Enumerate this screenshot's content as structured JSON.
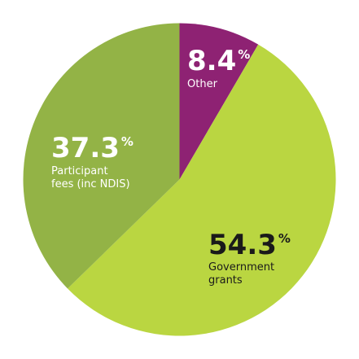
{
  "chart_data": {
    "type": "pie",
    "start_angle_deg": 0,
    "direction": "clockwise",
    "slices": [
      {
        "key": "other",
        "value": 8.4,
        "value_label": "8.4",
        "unit": "%",
        "label_lines": [
          "Other"
        ],
        "color": "#8e2273",
        "text_color": "#ffffff"
      },
      {
        "key": "government",
        "value": 54.3,
        "value_label": "54.3",
        "unit": "%",
        "label_lines": [
          "Government",
          "grants"
        ],
        "color": "#bad641",
        "text_color": "#1a1a1a"
      },
      {
        "key": "participant",
        "value": 37.3,
        "value_label": "37.3",
        "unit": "%",
        "label_lines": [
          "Participant",
          "fees (inc NDIS)"
        ],
        "color": "#93b346",
        "text_color": "#ffffff"
      }
    ]
  }
}
